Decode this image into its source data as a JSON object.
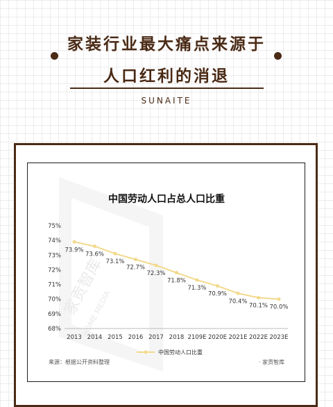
{
  "header": {
    "title_line1": "家装行业最大痛点来源于",
    "title_line2": "人口红利的消退",
    "brand": "SUNAITE",
    "accent_color": "#4a2a15"
  },
  "watermark": {
    "text": "家贡智库",
    "text_en": "HOME MEDIA"
  },
  "chart_data": {
    "type": "line",
    "title": "中国劳动人口占总人口比重",
    "categories": [
      "2013",
      "2014",
      "2015",
      "2016",
      "2017",
      "2018",
      "2109E",
      "2020E",
      "2021E",
      "2022E",
      "2023E"
    ],
    "series": [
      {
        "name": "中国劳动人口比重",
        "values": [
          73.9,
          73.6,
          73.1,
          72.7,
          72.3,
          71.8,
          71.3,
          70.9,
          70.4,
          70.1,
          70.0
        ],
        "labels": [
          "73.9%",
          "73.6%",
          "73.1%",
          "72.7%",
          "72.3%",
          "71.8%",
          "71.3%",
          "70.9%",
          "70.4%",
          "70.1%",
          "70.0%"
        ],
        "color": "#f2d98b"
      }
    ],
    "yticks": [
      "68%",
      "69%",
      "70%",
      "71%",
      "72%",
      "73%",
      "74%",
      "75%"
    ],
    "ylim": [
      68,
      75
    ],
    "grid": false,
    "legend": "bottom",
    "source_left": "来源：根据公开资料整理",
    "source_right": "· 家贡智库"
  }
}
